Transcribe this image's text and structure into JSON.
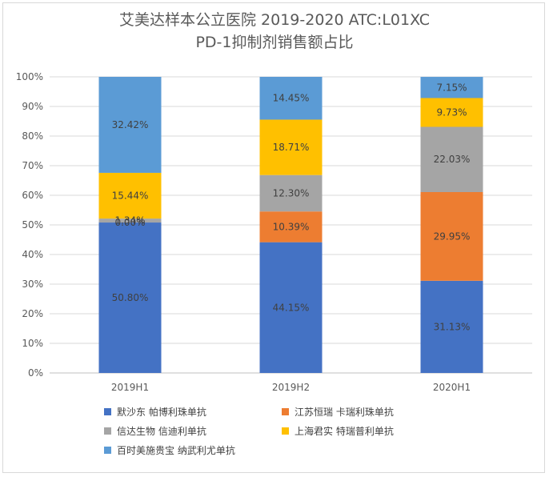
{
  "chart_data": {
    "type": "bar",
    "stacked": true,
    "percent": true,
    "title": "艾美达样本公立医院 2019-2020 ATC:L01XC",
    "subtitle": "PD-1抑制剂销售额占比",
    "categories": [
      "2019H1",
      "2019H2",
      "2020H1"
    ],
    "ylim": [
      0,
      100
    ],
    "yticks": [
      "0%",
      "10%",
      "20%",
      "30%",
      "40%",
      "50%",
      "60%",
      "70%",
      "80%",
      "90%",
      "100%"
    ],
    "grid": true,
    "legend_position": "bottom",
    "series": [
      {
        "name": "默沙东 帕博利珠单抗",
        "color": "#4472c4",
        "values": [
          50.8,
          44.15,
          31.13
        ],
        "labels": [
          "50.80%",
          "44.15%",
          "31.13%"
        ]
      },
      {
        "name": "江苏恒瑞 卡瑞利珠单抗",
        "color": "#ed7d31",
        "values": [
          0.0,
          10.39,
          29.95
        ],
        "labels": [
          "0.00%",
          "10.39%",
          "29.95%"
        ]
      },
      {
        "name": "信达生物 信迪利单抗",
        "color": "#a5a5a5",
        "values": [
          1.34,
          12.3,
          22.03
        ],
        "labels": [
          "1.34%",
          "12.30%",
          "22.03%"
        ]
      },
      {
        "name": "上海君实 特瑞普利单抗",
        "color": "#ffc000",
        "values": [
          15.44,
          18.71,
          9.73
        ],
        "labels": [
          "15.44%",
          "18.71%",
          "9.73%"
        ]
      },
      {
        "name": "百时美施贵宝 纳武利尤单抗",
        "color": "#5b9bd5",
        "values": [
          32.42,
          14.45,
          7.15
        ],
        "labels": [
          "32.42%",
          "14.45%",
          "7.15%"
        ]
      }
    ]
  }
}
